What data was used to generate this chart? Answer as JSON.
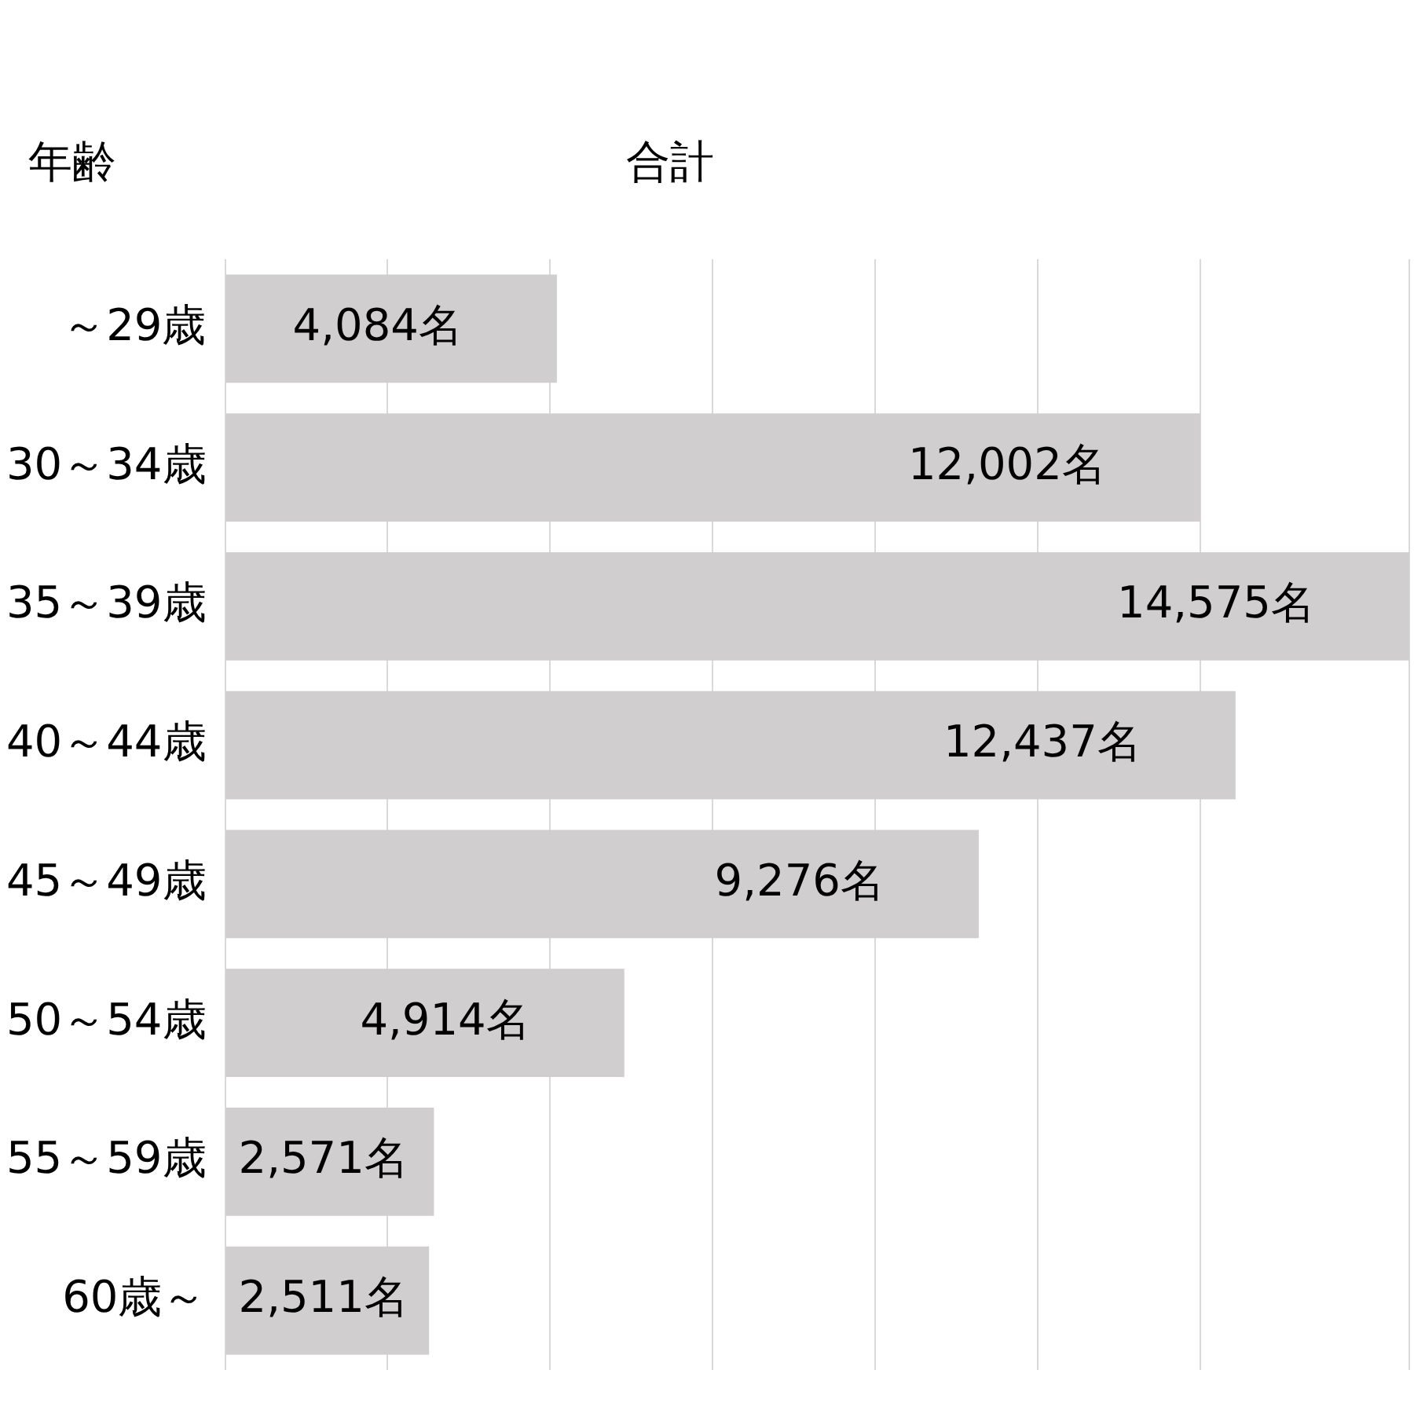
{
  "chart_data": {
    "type": "bar",
    "orientation": "horizontal",
    "title": "合計",
    "ylabel": "年齢",
    "categories": [
      "～29歳",
      "30～34歳",
      "35～39歳",
      "40～44歳",
      "45～49歳",
      "50～54歳",
      "55～59歳",
      "60歳～"
    ],
    "values": [
      4084,
      12002,
      14575,
      12437,
      9276,
      4914,
      2571,
      2511
    ],
    "value_labels": [
      "4,084名",
      "12,002名",
      "14,575名",
      "12,437名",
      "9,276名",
      "4,914名",
      "2,571名",
      "2,511名"
    ],
    "color": "#d0cece",
    "grid": "x",
    "legend": false
  }
}
